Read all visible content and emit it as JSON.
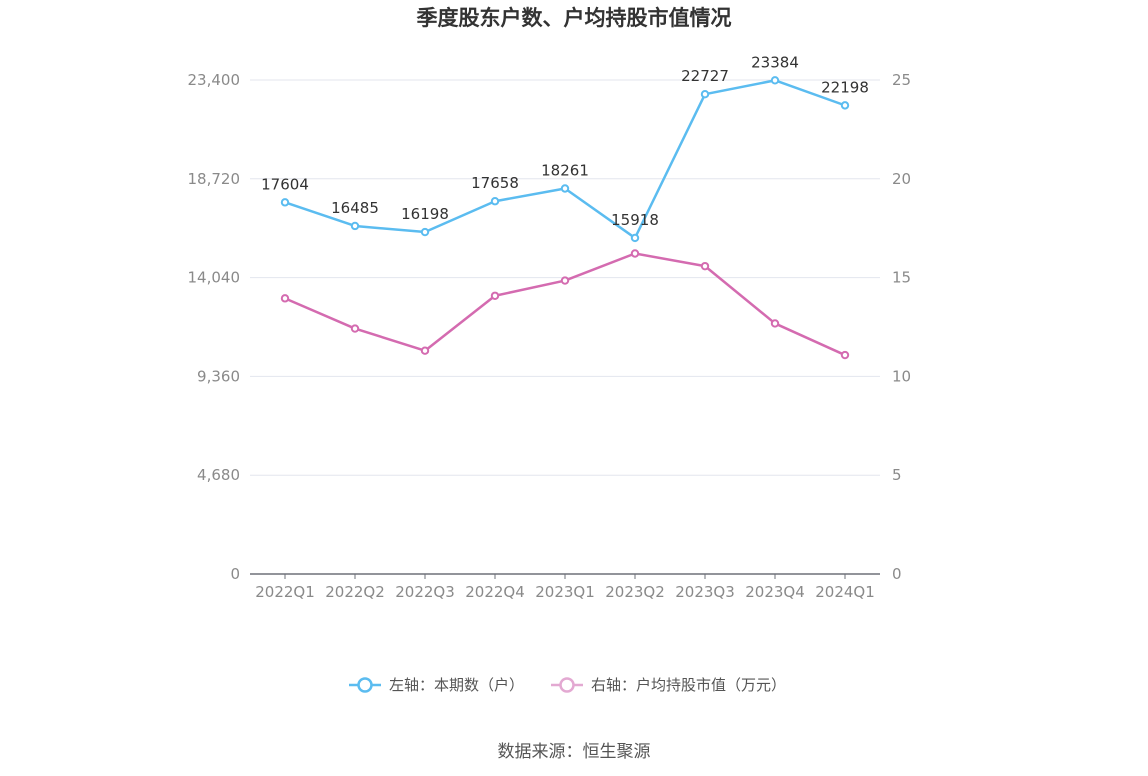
{
  "chart_data": {
    "type": "line",
    "title": "季度股东户数、户均持股市值情况",
    "source": "数据来源：恒生聚源",
    "categories": [
      "2022Q1",
      "2022Q2",
      "2022Q3",
      "2022Q4",
      "2023Q1",
      "2023Q2",
      "2023Q3",
      "2023Q4",
      "2024Q1"
    ],
    "left_axis": {
      "ticks": [
        "0",
        "4,680",
        "9,360",
        "14,040",
        "18,720",
        "23,400"
      ],
      "ylim": [
        0,
        23400
      ]
    },
    "right_axis": {
      "ticks": [
        "0",
        "5",
        "10",
        "15",
        "20",
        "25"
      ],
      "ylim": [
        0,
        25
      ]
    },
    "series": [
      {
        "name": "左轴：本期数（户）",
        "axis": "left",
        "color": "#5bbcf0",
        "values": [
          17604,
          16485,
          16198,
          17658,
          18261,
          15918,
          22727,
          23384,
          22198
        ],
        "labels": [
          "17604",
          "16485",
          "16198",
          "17658",
          "18261",
          "15918",
          "22727",
          "23384",
          "22198"
        ]
      },
      {
        "name": "右轴：户均持股市值（万元）",
        "axis": "right",
        "color": "#d46bb0",
        "values": [
          13.95,
          12.42,
          11.3,
          14.08,
          14.85,
          16.22,
          15.58,
          12.68,
          11.08
        ]
      }
    ],
    "grid": true,
    "legend_position": "bottom"
  }
}
